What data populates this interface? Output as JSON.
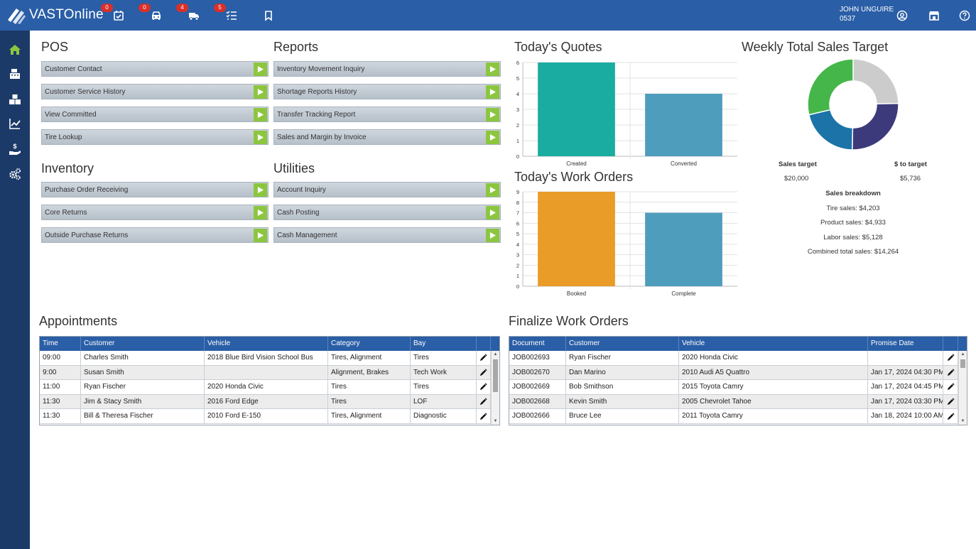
{
  "app": {
    "brand": "VASTOnline",
    "badges": [
      "0",
      "0",
      "4",
      "5"
    ],
    "user_name": "JOHN UNGUIRE",
    "user_id": "0537",
    "colors": {
      "header": "#2a5ea6",
      "sidebar": "#1c3a68",
      "accent_green": "#8cc63f",
      "teal": "#1aaca0",
      "steel_blue": "#4e9dbd",
      "orange": "#e99c27"
    }
  },
  "pos": {
    "title": "POS",
    "items": [
      "Customer Contact",
      "Customer Service History",
      "View Committed",
      "Tire Lookup"
    ]
  },
  "reports": {
    "title": "Reports",
    "items": [
      "Inventory Movement Inquiry",
      "Shortage Reports History",
      "Transfer Tracking Report",
      "Sales and Margin by Invoice"
    ]
  },
  "inventory": {
    "title": "Inventory",
    "items": [
      "Purchase Order Receiving",
      "Core Returns",
      "Outside Purchase Returns"
    ]
  },
  "utilities": {
    "title": "Utilities",
    "items": [
      "Account Inquiry",
      "Cash Posting",
      "Cash Management"
    ]
  },
  "quotes": {
    "title": "Today's Quotes",
    "chart_data": {
      "type": "bar",
      "categories": [
        "Created",
        "Converted"
      ],
      "values": [
        6,
        4
      ],
      "ylim": [
        0,
        6
      ],
      "yticks": [
        "0",
        "1",
        "2",
        "3",
        "4",
        "5",
        "6"
      ],
      "colors": [
        "#1aaca0",
        "#4e9dbd"
      ]
    }
  },
  "workorders": {
    "title": "Today's Work Orders",
    "chart_data": {
      "type": "bar",
      "categories": [
        "Booked",
        "Complete"
      ],
      "values": [
        9,
        7
      ],
      "ylim": [
        0,
        9
      ],
      "yticks": [
        "0",
        "1",
        "2",
        "3",
        "4",
        "5",
        "6",
        "7",
        "8",
        "9"
      ],
      "colors": [
        "#e99c27",
        "#4e9dbd"
      ]
    }
  },
  "weekly": {
    "title": "Weekly Total Sales Target",
    "chart_data": {
      "type": "pie",
      "slices": [
        {
          "name": "Product sales",
          "value": 4933,
          "color": "#cccccc"
        },
        {
          "name": "Labor sales",
          "value": 5128,
          "color": "#3d3a7c"
        },
        {
          "name": "Tire sales",
          "value": 4203,
          "color": "#1b73a8"
        },
        {
          "name": "$ to target",
          "value": 5736,
          "color": "#45b649"
        }
      ]
    },
    "sales_target_label": "Sales target",
    "sales_target_value": "$20,000",
    "to_target_label": "$ to target",
    "to_target_value": "$5,736",
    "breakdown_label": "Sales breakdown",
    "tire": "Tire sales: $4,203",
    "product": "Product sales: $4,933",
    "labor": "Labor sales: $5,128",
    "combined": "Combined total sales: $14,264"
  },
  "appointments": {
    "title": "Appointments",
    "columns": [
      "Time",
      "Customer",
      "Vehicle",
      "Category",
      "Bay"
    ],
    "rows": [
      [
        "09:00",
        "Charles Smith",
        "2018 Blue Bird Vision School Bus",
        "Tires, Alignment",
        "Tires"
      ],
      [
        "9:00",
        "Susan Smith",
        "",
        "Alignment, Brakes",
        "Tech Work"
      ],
      [
        "11:00",
        "Ryan Fischer",
        "2020 Honda Civic",
        "Tires",
        "Tires"
      ],
      [
        "11:30",
        "Jim & Stacy Smith",
        "2016 Ford Edge",
        "Tires",
        "LOF"
      ],
      [
        "11:30",
        "Bill & Theresa Fischer",
        "2010 Ford E-150",
        "Tires, Alignment",
        "Diagnostic"
      ]
    ]
  },
  "finalize": {
    "title": "Finalize Work Orders",
    "columns": [
      "Document",
      "Customer",
      "Vehicle",
      "Promise Date"
    ],
    "rows": [
      [
        "JOB002693",
        "Ryan Fischer",
        "2020 Honda Civic",
        ""
      ],
      [
        "JOB002670",
        "Dan Marino",
        "2010 Audi A5 Quattro",
        "Jan 17, 2024 04:30 PM"
      ],
      [
        "JOB002669",
        "Bob Smithson",
        "2015 Toyota Camry",
        "Jan 17, 2024 04:45 PM"
      ],
      [
        "JOB002668",
        "Kevin Smith",
        "2005 Chevrolet Tahoe",
        "Jan 17, 2024 03:30 PM"
      ],
      [
        "JOB002666",
        "Bruce Lee",
        "2011 Toyota Camry",
        "Jan 18, 2024 10:00 AM"
      ]
    ]
  }
}
